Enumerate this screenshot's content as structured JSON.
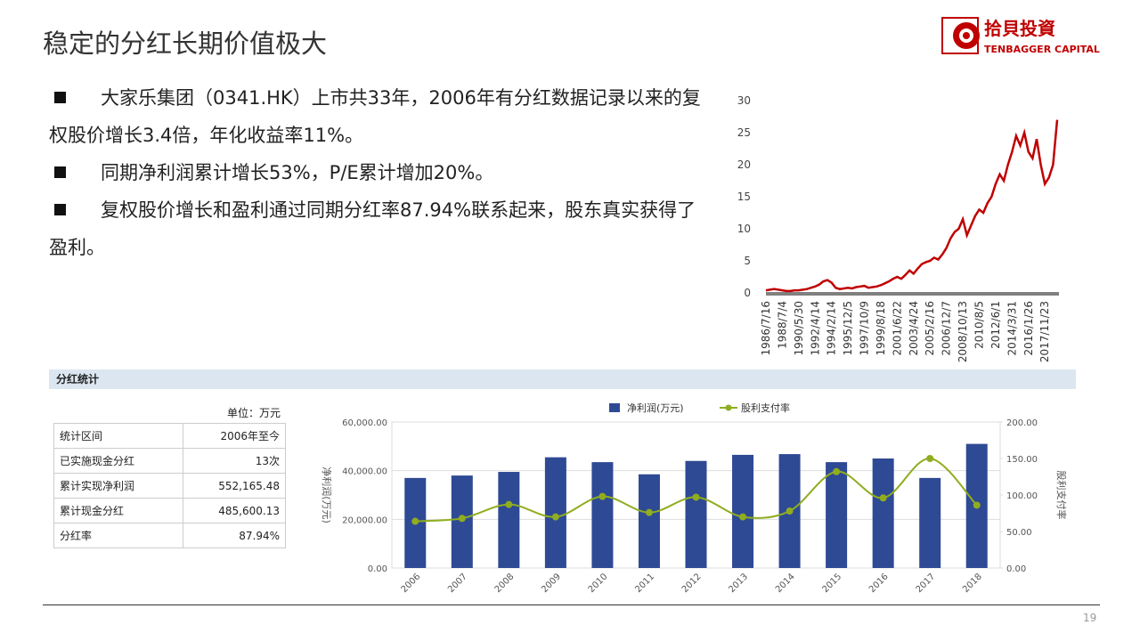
{
  "header": {
    "title": "稳定的分红长期价值极大",
    "logo_name": "拾貝投資",
    "logo_sub": "TENBAGGER CAPITAL"
  },
  "bullets": [
    "大家乐集团（0341.HK）上市共33年，2006年有分红数据记录以来的复权股价增长3.4倍，年化收益率11%。",
    "同期净利润累计增长53%，P/E累计增加20%。",
    "复权股价增长和盈利通过同期分红率87.94%联系起来，股东真实获得了盈利。"
  ],
  "section_title": "分红统计",
  "table": {
    "unit": "单位：万元",
    "rows": [
      [
        "统计区间",
        "2006年至今"
      ],
      [
        "已实施现金分红",
        "13次"
      ],
      [
        "累计实现净利润",
        "552,165.48"
      ],
      [
        "累计现金分红",
        "485,600.13"
      ],
      [
        "分红率",
        "87.94%"
      ]
    ]
  },
  "page_number": "19",
  "chart_data": [
    {
      "type": "line",
      "color": "#c00000",
      "categories": [
        "1986/7/16",
        null,
        null,
        null,
        "1988/7/4",
        null,
        null,
        null,
        "1990/5/30",
        null,
        null,
        null,
        "1992/4/14",
        null,
        null,
        null,
        "1994/2/14",
        null,
        null,
        null,
        "1995/12/5",
        null,
        null,
        null,
        "1997/10/9",
        null,
        null,
        null,
        "1999/8/18",
        null,
        null,
        null,
        "2001/6/22",
        null,
        null,
        null,
        "2003/4/24",
        null,
        null,
        null,
        "2005/2/16",
        null,
        null,
        null,
        "2006/12/7",
        null,
        null,
        null,
        "2008/10/13",
        null,
        null,
        null,
        "2010/8/5",
        null,
        null,
        null,
        "2012/6/1",
        null,
        null,
        null,
        "2014/3/31",
        null,
        null,
        null,
        "2016/1/26",
        null,
        null,
        null,
        "2017/11/23",
        null,
        null,
        null
      ],
      "values": [
        0.4,
        0.5,
        0.6,
        0.5,
        0.4,
        0.3,
        0.3,
        0.4,
        0.4,
        0.5,
        0.6,
        0.8,
        1.0,
        1.3,
        1.8,
        2.0,
        1.6,
        0.8,
        0.6,
        0.7,
        0.8,
        0.7,
        0.9,
        1.0,
        1.1,
        0.8,
        0.9,
        1.0,
        1.2,
        1.5,
        1.8,
        2.2,
        2.5,
        2.2,
        2.8,
        3.5,
        3.0,
        3.8,
        4.5,
        4.8,
        5.0,
        5.5,
        5.2,
        6.0,
        7.0,
        8.5,
        9.5,
        10.0,
        11.5,
        9.0,
        10.5,
        12.0,
        13.0,
        12.5,
        14.0,
        15.0,
        17.0,
        18.5,
        17.5,
        20.0,
        22.0,
        24.5,
        23.0,
        25.0,
        22.0,
        21.0,
        24.0,
        20.0,
        17.0,
        18.0,
        20.0,
        27.0
      ],
      "ylim": [
        0,
        30
      ],
      "yticks": [
        0,
        5,
        10,
        15,
        20,
        25,
        30
      ]
    },
    {
      "type": "bar",
      "categories": [
        "2006",
        "2007",
        "2008",
        "2009",
        "2010",
        "2011",
        "2012",
        "2013",
        "2014",
        "2015",
        "2016",
        "2017",
        "2018"
      ],
      "series": [
        {
          "name": "净利润(万元)",
          "type": "bar",
          "color": "#2e4a94",
          "values": [
            37000,
            38000,
            39500,
            45500,
            43500,
            38500,
            44000,
            46500,
            46800,
            43500,
            45000,
            37000,
            51000
          ]
        },
        {
          "name": "股利支付率",
          "type": "line",
          "axis": "y2",
          "color": "#8fad1f",
          "values": [
            64,
            68,
            87,
            70,
            98,
            76,
            97,
            70,
            78,
            132,
            96,
            150,
            86
          ]
        }
      ],
      "y_label": "净利润(万元)",
      "y2_label": "股利支付率",
      "ylim": [
        0,
        60000
      ],
      "yticks": [
        {
          "value": 0,
          "label": "0.00"
        },
        {
          "value": 20000,
          "label": "20,000.00"
        },
        {
          "value": 40000,
          "label": "40,000.00"
        },
        {
          "value": 60000,
          "label": "60,000.00"
        }
      ],
      "y2lim": [
        0,
        200
      ],
      "y2ticks": [
        {
          "value": 0,
          "label": "0.00"
        },
        {
          "value": 50,
          "label": "50.00"
        },
        {
          "value": 100,
          "label": "100.00"
        },
        {
          "value": 150,
          "label": "150.00"
        },
        {
          "value": 200,
          "label": "200.00"
        }
      ],
      "grid": true
    }
  ]
}
